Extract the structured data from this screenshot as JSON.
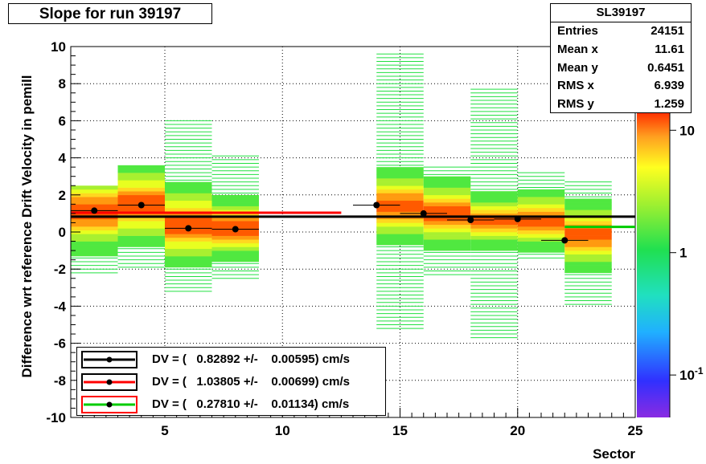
{
  "title": "Slope for run 39197",
  "stats": {
    "name": "SL39197",
    "rows": [
      {
        "label": "Entries",
        "value": "24151"
      },
      {
        "label": "Mean x",
        "value": "11.61"
      },
      {
        "label": "Mean y",
        "value": "0.6451"
      },
      {
        "label": "RMS x",
        "value": "6.939"
      },
      {
        "label": "RMS y",
        "value": "1.259"
      }
    ]
  },
  "legend": [
    {
      "dv": "DV = (   0.82892 +/-    0.00595) cm/s",
      "line_color": "#000000",
      "box_color": "#000000"
    },
    {
      "dv": "DV = (   1.03805 +/-    0.00699) cm/s",
      "line_color": "#ff0000",
      "box_color": "#000000"
    },
    {
      "dv": "DV = (   0.27810 +/-    0.01134) cm/s",
      "line_color": "#00cc00",
      "box_color": "#ff0000"
    }
  ],
  "chart_data": {
    "type": "heatmap",
    "title": "Slope for run 39197",
    "xlabel": "Sector",
    "ylabel": "Difference wrt reference Drift Velocity in pemill",
    "xlim": [
      1,
      25
    ],
    "ylim": [
      -10,
      10
    ],
    "xticks": [
      5,
      10,
      15,
      20,
      25
    ],
    "yticks": [
      -10,
      -8,
      -6,
      -4,
      -2,
      0,
      2,
      4,
      6,
      8,
      10
    ],
    "grid": true,
    "colorbar": {
      "scale": "log",
      "labels": [
        "10",
        "1",
        "10^-1"
      ],
      "values": [
        10,
        1,
        0.1
      ]
    },
    "columns": [
      {
        "x0": 1,
        "x1": 3,
        "ymin": -2.3,
        "ymax": 2.5,
        "core": [
          0.2,
          2.0
        ]
      },
      {
        "x0": 3,
        "x1": 5,
        "ymin": -2.0,
        "ymax": 3.6,
        "core": [
          0.6,
          2.4
        ]
      },
      {
        "x0": 5,
        "x1": 7,
        "ymin": -3.3,
        "ymax": 6.1,
        "core": [
          -0.5,
          1.3
        ]
      },
      {
        "x0": 7,
        "x1": 9,
        "ymin": -2.6,
        "ymax": 4.2,
        "core": [
          -0.5,
          0.9
        ]
      },
      {
        "x0": 14,
        "x1": 16,
        "ymin": -5.3,
        "ymax": 9.6,
        "core": [
          0.6,
          2.2
        ]
      },
      {
        "x0": 16,
        "x1": 18,
        "ymin": -2.4,
        "ymax": 3.5,
        "core": [
          0.2,
          1.8
        ]
      },
      {
        "x0": 18,
        "x1": 20,
        "ymin": -5.8,
        "ymax": 7.8,
        "core": [
          0.0,
          1.2
        ]
      },
      {
        "x0": 20,
        "x1": 22,
        "ymin": -1.5,
        "ymax": 3.3,
        "core": [
          0.0,
          1.3
        ]
      },
      {
        "x0": 22,
        "x1": 24,
        "ymin": -4.0,
        "ymax": 2.8,
        "core": [
          -0.9,
          0.6
        ]
      }
    ],
    "profile_points": [
      {
        "x": 2,
        "y": 1.15
      },
      {
        "x": 4,
        "y": 1.45
      },
      {
        "x": 6,
        "y": 0.2
      },
      {
        "x": 8,
        "y": 0.15
      },
      {
        "x": 14,
        "y": 1.45
      },
      {
        "x": 16,
        "y": 1.0
      },
      {
        "x": 18,
        "y": 0.65
      },
      {
        "x": 20,
        "y": 0.7
      },
      {
        "x": 22,
        "y": -0.45
      }
    ],
    "fits": [
      {
        "x0": 1,
        "x1": 25,
        "y": 0.82892,
        "color": "#000000"
      },
      {
        "x0": 1,
        "x1": 12.5,
        "y": 1.03805,
        "color": "#ff0000"
      },
      {
        "x0": 22,
        "x1": 25,
        "y": 0.2781,
        "color": "#00cc00"
      }
    ]
  }
}
